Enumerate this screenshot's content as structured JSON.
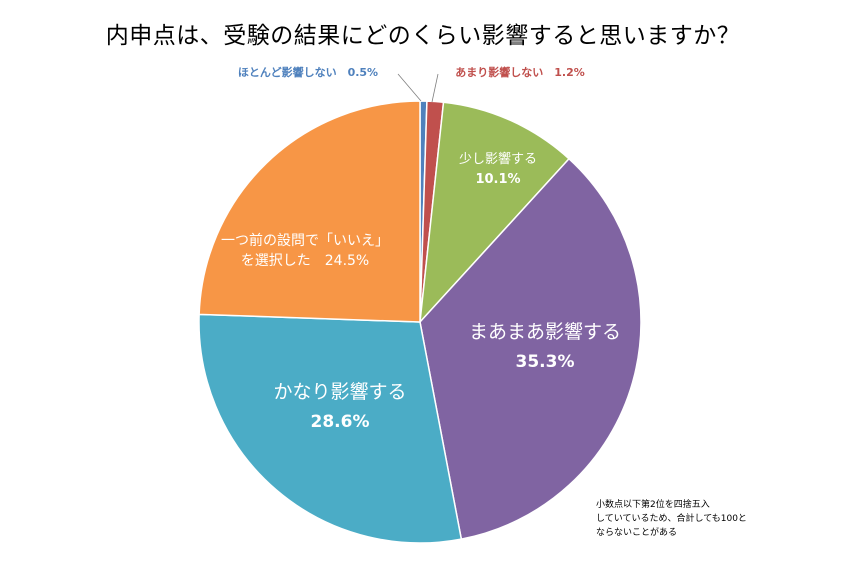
{
  "chart_data": {
    "type": "pie",
    "title": "内申点は、受験の結果にどのくらい影響すると思いますか？",
    "start_angle_deg": 0,
    "direction": "clockwise",
    "slices": [
      {
        "label": "ほとんど影響しない",
        "value": 0.5,
        "value_label": "0.5%",
        "color": "#4f81bd",
        "label_color": "#4f81bd",
        "label_placement": "outside"
      },
      {
        "label": "あまり影響しない",
        "value": 1.2,
        "value_label": "1.2%",
        "color": "#c0504d",
        "label_color": "#c0504d",
        "label_placement": "outside"
      },
      {
        "label": "少し影響する",
        "value": 10.1,
        "value_label": "10.1%",
        "color": "#9bbb59",
        "label_color": "#ffffff",
        "label_placement": "inside"
      },
      {
        "label": "まあまあ影響する",
        "value": 35.3,
        "value_label": "35.3%",
        "color": "#8064a2",
        "label_color": "#ffffff",
        "label_placement": "inside"
      },
      {
        "label": "かなり影響する",
        "value": 28.6,
        "value_label": "28.6%",
        "color": "#4bacc6",
        "label_color": "#ffffff",
        "label_placement": "inside"
      },
      {
        "label_lines": [
          "一つ前の設問で「いいえ」",
          "を選択した"
        ],
        "value": 24.5,
        "value_label": "24.5%",
        "color": "#f79646",
        "label_color": "#ffffff",
        "label_placement": "inside"
      }
    ],
    "note_lines": [
      "小数点以下第2位を四捨五入",
      "していているため、合計しても100と",
      "ならないことがある"
    ]
  }
}
